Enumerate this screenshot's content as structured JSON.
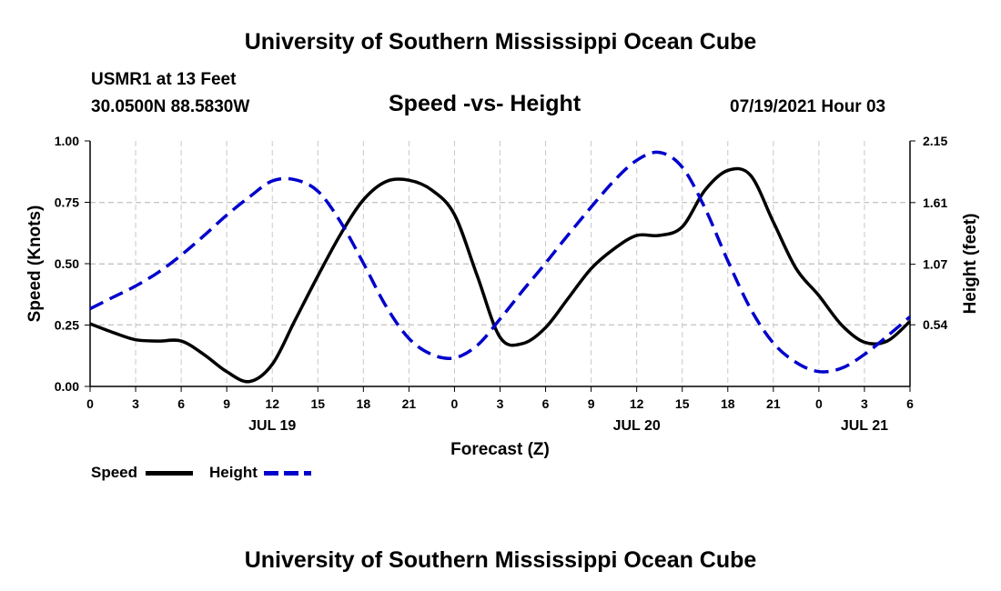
{
  "header": {
    "title": "University of Southern Mississippi Ocean Cube",
    "station": "USMR1 at 13 Feet",
    "coords": "30.0500N  88.5830W",
    "subtitle": "Speed -vs- Height",
    "datetime": "07/19/2021 Hour 03"
  },
  "footer": {
    "title": "University of Southern Mississippi Ocean Cube"
  },
  "legend": [
    {
      "label": "Speed",
      "color": "#000000",
      "style": "solid"
    },
    {
      "label": "Height",
      "color": "#0000cc",
      "style": "dashed"
    }
  ],
  "chart_data": {
    "type": "line",
    "xlabel": "Forecast (Z)",
    "ylabel": "Speed (Knots)",
    "y2label": "Height (feet)",
    "xlim": [
      0,
      54
    ],
    "ylim": [
      0,
      1.0
    ],
    "y2lim": [
      0,
      2.15
    ],
    "grid": true,
    "x_tick_values": [
      0,
      3,
      6,
      9,
      12,
      15,
      18,
      21,
      24,
      27,
      30,
      33,
      36,
      39,
      42,
      45,
      48,
      51,
      54
    ],
    "x_tick_labels": [
      "0",
      "3",
      "6",
      "9",
      "12",
      "15",
      "18",
      "21",
      "0",
      "3",
      "6",
      "9",
      "12",
      "15",
      "18",
      "21",
      "0",
      "3",
      "6"
    ],
    "date_labels": [
      {
        "label": "JUL 19",
        "x": 12
      },
      {
        "label": "JUL 20",
        "x": 36
      },
      {
        "label": "JUL 21",
        "x": 51
      }
    ],
    "y_ticks": [
      0.0,
      0.25,
      0.5,
      0.75,
      1.0
    ],
    "y_tick_labels": [
      "0.00",
      "0.25",
      "0.50",
      "0.75",
      "1.00"
    ],
    "y2_ticks": [
      0.54,
      1.07,
      1.61,
      2.15
    ],
    "y2_tick_labels": [
      "0.54",
      "1.07",
      "1.61",
      "2.15"
    ],
    "series": [
      {
        "name": "Speed",
        "axis": "left",
        "color": "#000000",
        "dashed": false,
        "x": [
          0,
          1.5,
          3,
          4.5,
          6,
          7.5,
          9,
          10.5,
          12,
          13.5,
          15,
          16.5,
          18,
          19.5,
          21,
          22.5,
          24,
          25.5,
          27,
          28.5,
          30,
          31.5,
          33,
          34.5,
          36,
          37.5,
          39,
          40.5,
          42,
          43.5,
          45,
          46.5,
          48,
          49.5,
          51,
          52.5,
          54
        ],
        "values": [
          0.255,
          0.22,
          0.19,
          0.185,
          0.185,
          0.13,
          0.06,
          0.02,
          0.09,
          0.27,
          0.45,
          0.62,
          0.76,
          0.835,
          0.84,
          0.8,
          0.7,
          0.45,
          0.2,
          0.175,
          0.24,
          0.36,
          0.48,
          0.56,
          0.615,
          0.615,
          0.65,
          0.8,
          0.88,
          0.86,
          0.67,
          0.48,
          0.37,
          0.25,
          0.18,
          0.185,
          0.265
        ]
      },
      {
        "name": "Height",
        "axis": "right",
        "color": "#0000cc",
        "dashed": true,
        "x": [
          0,
          1.5,
          3,
          4.5,
          6,
          7.5,
          9,
          10.5,
          12,
          13.5,
          15,
          16.5,
          18,
          19.5,
          21,
          22.5,
          24,
          25.5,
          27,
          28.5,
          30,
          31.5,
          33,
          34.5,
          36,
          37.5,
          39,
          40.5,
          42,
          43.5,
          45,
          46.5,
          48,
          49.5,
          51,
          52.5,
          54
        ],
        "values": [
          0.68,
          0.78,
          0.88,
          1.0,
          1.15,
          1.32,
          1.5,
          1.66,
          1.8,
          1.81,
          1.71,
          1.44,
          1.08,
          0.7,
          0.42,
          0.28,
          0.25,
          0.36,
          0.59,
          0.84,
          1.08,
          1.33,
          1.57,
          1.8,
          1.98,
          2.05,
          1.92,
          1.56,
          1.1,
          0.68,
          0.38,
          0.21,
          0.13,
          0.16,
          0.28,
          0.44,
          0.61
        ]
      }
    ]
  }
}
